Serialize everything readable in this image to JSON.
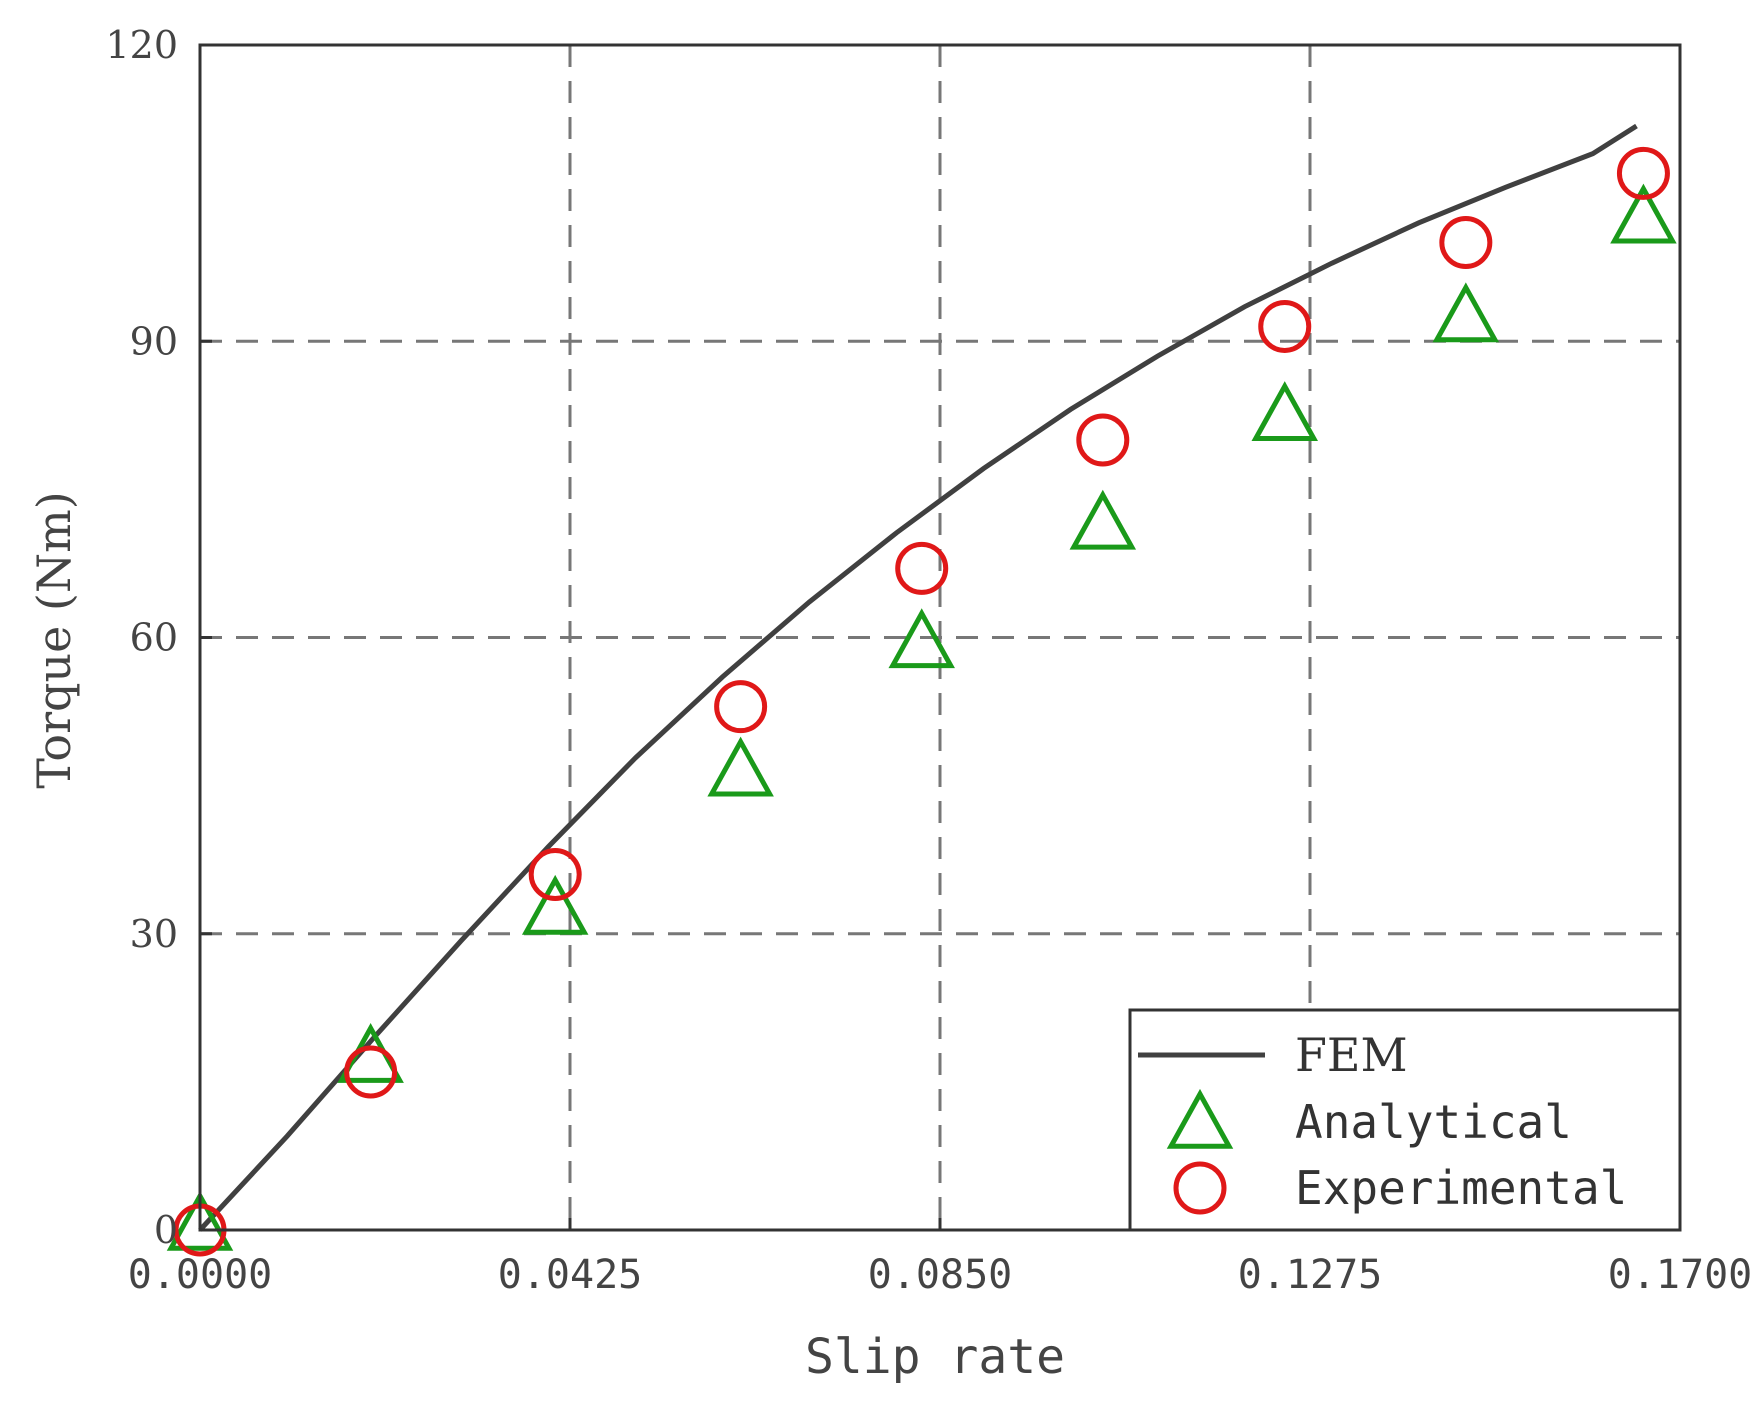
{
  "chart_data": {
    "type": "scatter",
    "xlabel": "Slip rate",
    "ylabel": "Torque (Nm)",
    "xlim": [
      0,
      0.17
    ],
    "ylim": [
      0,
      120
    ],
    "x_ticks": [
      "0.0000",
      "0.0425",
      "0.0850",
      "0.1275",
      "0.1700"
    ],
    "y_ticks": [
      "0",
      "30",
      "60",
      "90",
      "120"
    ],
    "grid": "dashed",
    "legend_position": "bottom-right",
    "series": [
      {
        "name": "FEM",
        "mode": "line",
        "color": "#404040",
        "x": [
          0,
          0.01,
          0.02,
          0.03,
          0.04,
          0.05,
          0.06,
          0.07,
          0.08,
          0.09,
          0.1,
          0.11,
          0.12,
          0.13,
          0.14,
          0.15,
          0.16,
          0.165
        ],
        "y": [
          0,
          9.5,
          19.5,
          29.3,
          38.8,
          47.8,
          56.0,
          63.6,
          70.6,
          77.1,
          83.1,
          88.5,
          93.5,
          97.9,
          102.0,
          105.6,
          109.0,
          111.8
        ]
      },
      {
        "name": "Analytical",
        "mode": "marker",
        "marker": "triangle",
        "color": "#1a9a1a",
        "x": [
          0,
          0.0196,
          0.0408,
          0.0621,
          0.0829,
          0.1037,
          0.1246,
          0.1454,
          0.1658
        ],
        "y": [
          0,
          17,
          32,
          46,
          59,
          71,
          82,
          92,
          102
        ]
      },
      {
        "name": "Experimental",
        "mode": "marker",
        "marker": "circle",
        "color": "#e01818",
        "x": [
          0,
          0.0196,
          0.0408,
          0.0621,
          0.0829,
          0.1037,
          0.1246,
          0.1454,
          0.1658
        ],
        "y": [
          0,
          16,
          36,
          53,
          67,
          80,
          91.5,
          100,
          107
        ]
      }
    ]
  }
}
